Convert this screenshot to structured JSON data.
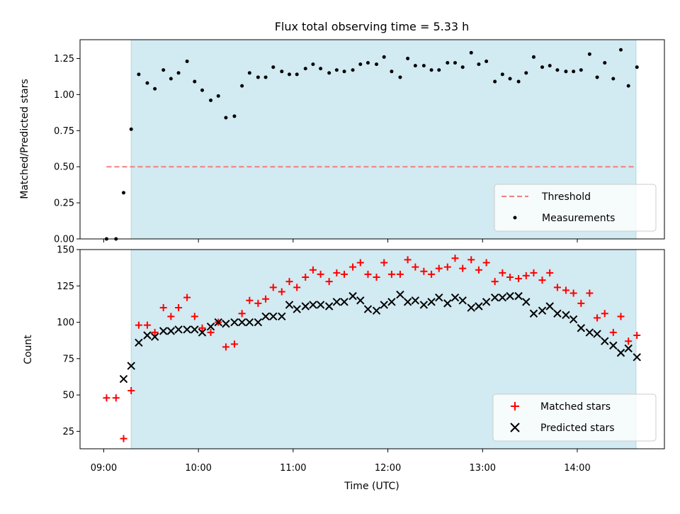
{
  "chart_data": [
    {
      "type": "scatter",
      "title": "Flux total observing time = 5.33 h",
      "ylabel": "Matched/Predicted stars",
      "xlabel": "",
      "ylim": [
        0,
        1.38
      ],
      "yticks": [
        "0.00",
        "0.25",
        "0.50",
        "0.75",
        "1.00",
        "1.25"
      ],
      "xlim": [
        8.75,
        14.92
      ],
      "legend_position": "lower-right",
      "threshold": {
        "name": "Threshold",
        "value": 0.5,
        "x_start": 9.03,
        "x_end": 14.62,
        "color": "#f08080"
      },
      "shaded_region": {
        "x_start": 9.29,
        "x_end": 14.62,
        "color": "#add8e6"
      },
      "series": [
        {
          "name": "Measurements",
          "color": "#000000",
          "marker": "dot",
          "points": [
            [
              9.03,
              0.0
            ],
            [
              9.13,
              0.0
            ],
            [
              9.21,
              0.32
            ],
            [
              9.29,
              0.76
            ],
            [
              9.37,
              1.14
            ],
            [
              9.46,
              1.08
            ],
            [
              9.54,
              1.04
            ],
            [
              9.63,
              1.17
            ],
            [
              9.71,
              1.11
            ],
            [
              9.79,
              1.15
            ],
            [
              9.88,
              1.23
            ],
            [
              9.96,
              1.09
            ],
            [
              10.04,
              1.03
            ],
            [
              10.13,
              0.96
            ],
            [
              10.21,
              0.99
            ],
            [
              10.29,
              0.84
            ],
            [
              10.38,
              0.85
            ],
            [
              10.46,
              1.06
            ],
            [
              10.54,
              1.15
            ],
            [
              10.63,
              1.12
            ],
            [
              10.71,
              1.12
            ],
            [
              10.79,
              1.19
            ],
            [
              10.88,
              1.16
            ],
            [
              10.96,
              1.14
            ],
            [
              11.04,
              1.14
            ],
            [
              11.13,
              1.18
            ],
            [
              11.21,
              1.21
            ],
            [
              11.29,
              1.18
            ],
            [
              11.38,
              1.15
            ],
            [
              11.46,
              1.17
            ],
            [
              11.54,
              1.16
            ],
            [
              11.63,
              1.17
            ],
            [
              11.71,
              1.21
            ],
            [
              11.79,
              1.22
            ],
            [
              11.88,
              1.21
            ],
            [
              11.96,
              1.26
            ],
            [
              12.04,
              1.16
            ],
            [
              12.13,
              1.12
            ],
            [
              12.21,
              1.25
            ],
            [
              12.29,
              1.2
            ],
            [
              12.38,
              1.2
            ],
            [
              12.46,
              1.17
            ],
            [
              12.54,
              1.17
            ],
            [
              12.63,
              1.22
            ],
            [
              12.71,
              1.22
            ],
            [
              12.79,
              1.19
            ],
            [
              12.88,
              1.29
            ],
            [
              12.96,
              1.21
            ],
            [
              13.04,
              1.23
            ],
            [
              13.13,
              1.09
            ],
            [
              13.21,
              1.14
            ],
            [
              13.29,
              1.11
            ],
            [
              13.38,
              1.09
            ],
            [
              13.46,
              1.15
            ],
            [
              13.54,
              1.26
            ],
            [
              13.63,
              1.19
            ],
            [
              13.71,
              1.2
            ],
            [
              13.79,
              1.17
            ],
            [
              13.88,
              1.16
            ],
            [
              13.96,
              1.16
            ],
            [
              14.04,
              1.17
            ],
            [
              14.13,
              1.28
            ],
            [
              14.21,
              1.12
            ],
            [
              14.29,
              1.22
            ],
            [
              14.38,
              1.11
            ],
            [
              14.46,
              1.31
            ],
            [
              14.54,
              1.06
            ],
            [
              14.63,
              1.19
            ]
          ]
        }
      ]
    },
    {
      "type": "scatter",
      "title": "",
      "ylabel": "Count",
      "xlabel": "Time (UTC)",
      "ylim": [
        13,
        150
      ],
      "yticks": [
        "25",
        "50",
        "75",
        "100",
        "125",
        "150"
      ],
      "xlim": [
        8.75,
        14.92
      ],
      "xticks": [
        "09:00",
        "10:00",
        "11:00",
        "12:00",
        "13:00",
        "14:00"
      ],
      "legend_position": "lower-right",
      "shaded_region": {
        "x_start": 9.29,
        "x_end": 14.62,
        "color": "#add8e6"
      },
      "series": [
        {
          "name": "Matched stars",
          "color": "#ff0000",
          "marker": "plus",
          "points": [
            [
              9.03,
              48
            ],
            [
              9.13,
              48
            ],
            [
              9.21,
              20
            ],
            [
              9.29,
              53
            ],
            [
              9.37,
              98
            ],
            [
              9.46,
              98
            ],
            [
              9.54,
              93
            ],
            [
              9.63,
              110
            ],
            [
              9.71,
              104
            ],
            [
              9.79,
              110
            ],
            [
              9.88,
              117
            ],
            [
              9.96,
              104
            ],
            [
              10.04,
              96
            ],
            [
              10.13,
              93
            ],
            [
              10.21,
              100
            ],
            [
              10.29,
              83
            ],
            [
              10.38,
              85
            ],
            [
              10.46,
              106
            ],
            [
              10.54,
              115
            ],
            [
              10.63,
              113
            ],
            [
              10.71,
              116
            ],
            [
              10.79,
              124
            ],
            [
              10.88,
              121
            ],
            [
              10.96,
              128
            ],
            [
              11.04,
              124
            ],
            [
              11.13,
              131
            ],
            [
              11.21,
              136
            ],
            [
              11.29,
              133
            ],
            [
              11.38,
              128
            ],
            [
              11.46,
              134
            ],
            [
              11.54,
              133
            ],
            [
              11.63,
              138
            ],
            [
              11.71,
              141
            ],
            [
              11.79,
              133
            ],
            [
              11.88,
              131
            ],
            [
              11.96,
              141
            ],
            [
              12.04,
              133
            ],
            [
              12.13,
              133
            ],
            [
              12.21,
              143
            ],
            [
              12.29,
              138
            ],
            [
              12.38,
              135
            ],
            [
              12.46,
              133
            ],
            [
              12.54,
              137
            ],
            [
              12.63,
              138
            ],
            [
              12.71,
              144
            ],
            [
              12.79,
              137
            ],
            [
              12.88,
              143
            ],
            [
              12.96,
              136
            ],
            [
              13.04,
              141
            ],
            [
              13.13,
              128
            ],
            [
              13.21,
              134
            ],
            [
              13.29,
              131
            ],
            [
              13.38,
              130
            ],
            [
              13.46,
              132
            ],
            [
              13.54,
              134
            ],
            [
              13.63,
              129
            ],
            [
              13.71,
              134
            ],
            [
              13.79,
              124
            ],
            [
              13.88,
              122
            ],
            [
              13.96,
              120
            ],
            [
              14.04,
              113
            ],
            [
              14.13,
              120
            ],
            [
              14.21,
              103
            ],
            [
              14.29,
              106
            ],
            [
              14.38,
              93
            ],
            [
              14.46,
              104
            ],
            [
              14.54,
              87
            ],
            [
              14.63,
              91
            ]
          ]
        },
        {
          "name": "Predicted stars",
          "color": "#000000",
          "marker": "x",
          "points": [
            [
              9.21,
              61
            ],
            [
              9.29,
              70
            ],
            [
              9.37,
              86
            ],
            [
              9.46,
              91
            ],
            [
              9.54,
              90
            ],
            [
              9.63,
              94
            ],
            [
              9.71,
              94
            ],
            [
              9.79,
              95
            ],
            [
              9.88,
              95
            ],
            [
              9.96,
              95
            ],
            [
              10.04,
              93
            ],
            [
              10.13,
              97
            ],
            [
              10.21,
              100
            ],
            [
              10.29,
              99
            ],
            [
              10.38,
              100
            ],
            [
              10.46,
              100
            ],
            [
              10.54,
              100
            ],
            [
              10.63,
              100
            ],
            [
              10.71,
              104
            ],
            [
              10.79,
              104
            ],
            [
              10.88,
              104
            ],
            [
              10.96,
              112
            ],
            [
              11.04,
              109
            ],
            [
              11.13,
              111
            ],
            [
              11.21,
              112
            ],
            [
              11.29,
              112
            ],
            [
              11.38,
              111
            ],
            [
              11.46,
              114
            ],
            [
              11.54,
              114
            ],
            [
              11.63,
              118
            ],
            [
              11.71,
              115
            ],
            [
              11.79,
              109
            ],
            [
              11.88,
              108
            ],
            [
              11.96,
              112
            ],
            [
              12.04,
              114
            ],
            [
              12.13,
              119
            ],
            [
              12.21,
              114
            ],
            [
              12.29,
              115
            ],
            [
              12.38,
              112
            ],
            [
              12.46,
              114
            ],
            [
              12.54,
              117
            ],
            [
              12.63,
              113
            ],
            [
              12.71,
              117
            ],
            [
              12.79,
              115
            ],
            [
              12.88,
              110
            ],
            [
              12.96,
              111
            ],
            [
              13.04,
              114
            ],
            [
              13.13,
              117
            ],
            [
              13.21,
              117
            ],
            [
              13.29,
              118
            ],
            [
              13.38,
              118
            ],
            [
              13.46,
              114
            ],
            [
              13.54,
              106
            ],
            [
              13.63,
              108
            ],
            [
              13.71,
              111
            ],
            [
              13.79,
              106
            ],
            [
              13.88,
              105
            ],
            [
              13.96,
              102
            ],
            [
              14.04,
              96
            ],
            [
              14.13,
              93
            ],
            [
              14.21,
              92
            ],
            [
              14.29,
              87
            ],
            [
              14.38,
              84
            ],
            [
              14.46,
              79
            ],
            [
              14.54,
              82
            ],
            [
              14.63,
              76
            ]
          ]
        }
      ]
    }
  ]
}
